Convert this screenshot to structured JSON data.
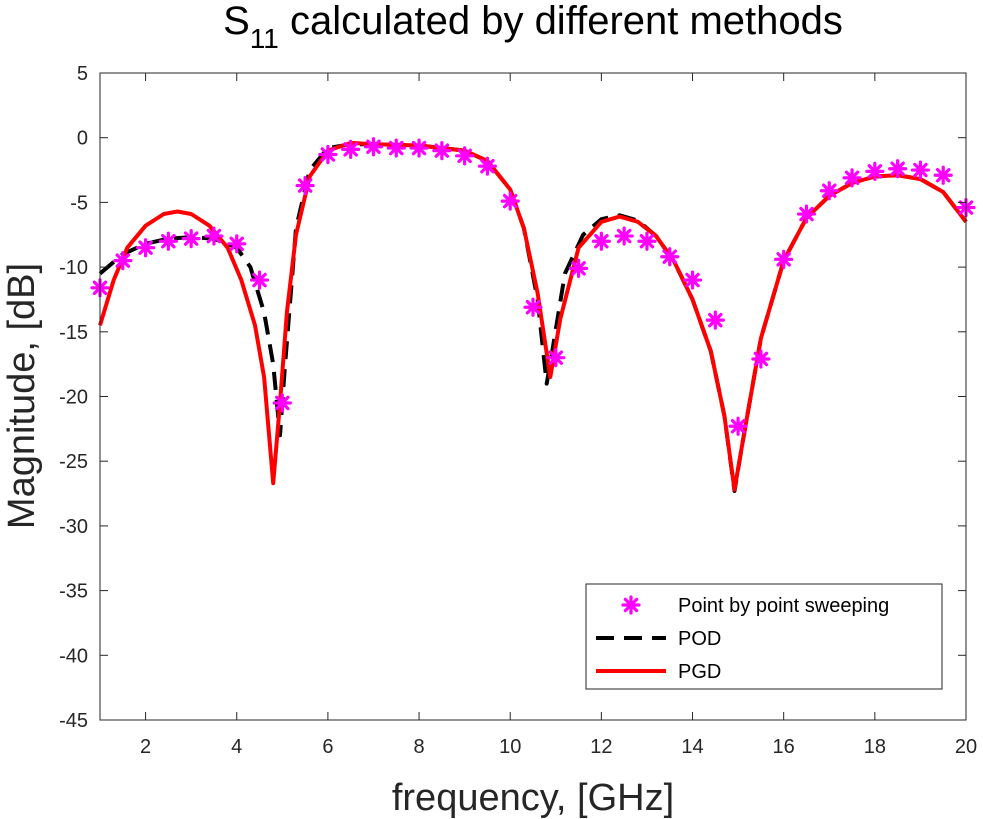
{
  "chart_data": {
    "type": "line",
    "title": "S",
    "title_subscript": "11",
    "title_rest": " calculated by different methods",
    "xlabel": "frequency, [GHz]",
    "ylabel": "Magnitude, [dB]",
    "xlim": [
      1,
      20
    ],
    "ylim": [
      -45,
      5
    ],
    "x_ticks": [
      2,
      4,
      6,
      8,
      10,
      12,
      14,
      16,
      18,
      20
    ],
    "y_ticks": [
      5,
      0,
      -5,
      -10,
      -15,
      -20,
      -25,
      -30,
      -35,
      -40,
      -45
    ],
    "grid": false,
    "legend_position": "bottom-right",
    "series": [
      {
        "name": "Point by point sweeping",
        "style": "markers",
        "marker": "asterisk",
        "color": "#ff00ff",
        "points": [
          [
            1.0,
            -11.6
          ],
          [
            1.5,
            -9.5
          ],
          [
            2.0,
            -8.5
          ],
          [
            2.5,
            -8.0
          ],
          [
            3.0,
            -7.8
          ],
          [
            3.5,
            -7.6
          ],
          [
            4.0,
            -8.2
          ],
          [
            4.5,
            -11.0
          ],
          [
            5.0,
            -20.5
          ],
          [
            5.5,
            -3.7
          ],
          [
            6.0,
            -1.3
          ],
          [
            6.5,
            -0.9
          ],
          [
            7.0,
            -0.7
          ],
          [
            7.5,
            -0.8
          ],
          [
            8.0,
            -0.8
          ],
          [
            8.5,
            -1.0
          ],
          [
            9.0,
            -1.4
          ],
          [
            9.5,
            -2.2
          ],
          [
            10.0,
            -4.9
          ],
          [
            10.5,
            -13.1
          ],
          [
            11.0,
            -17.0
          ],
          [
            11.5,
            -10.1
          ],
          [
            12.0,
            -8.0
          ],
          [
            12.5,
            -7.6
          ],
          [
            13.0,
            -8.0
          ],
          [
            13.5,
            -9.2
          ],
          [
            14.0,
            -11.0
          ],
          [
            14.5,
            -14.1
          ],
          [
            15.0,
            -22.3
          ],
          [
            15.5,
            -17.1
          ],
          [
            16.0,
            -9.4
          ],
          [
            16.5,
            -5.9
          ],
          [
            17.0,
            -4.1
          ],
          [
            17.5,
            -3.1
          ],
          [
            18.0,
            -2.6
          ],
          [
            18.5,
            -2.4
          ],
          [
            19.0,
            -2.5
          ],
          [
            19.5,
            -2.9
          ],
          [
            20.0,
            -5.4
          ]
        ]
      },
      {
        "name": "POD",
        "style": "dashed",
        "color": "#000000",
        "points": [
          [
            1.0,
            -10.5
          ],
          [
            1.5,
            -9.0
          ],
          [
            2.0,
            -8.2
          ],
          [
            2.5,
            -7.8
          ],
          [
            3.0,
            -7.7
          ],
          [
            3.5,
            -7.8
          ],
          [
            4.0,
            -8.5
          ],
          [
            4.3,
            -10.0
          ],
          [
            4.6,
            -13.5
          ],
          [
            4.8,
            -17.5
          ],
          [
            4.95,
            -23.0
          ],
          [
            5.05,
            -18.0
          ],
          [
            5.3,
            -7.0
          ],
          [
            5.6,
            -2.5
          ],
          [
            6.0,
            -0.8
          ],
          [
            6.5,
            -0.5
          ],
          [
            7.0,
            -0.5
          ],
          [
            8.0,
            -0.6
          ],
          [
            9.0,
            -1.0
          ],
          [
            9.5,
            -1.8
          ],
          [
            10.0,
            -4.0
          ],
          [
            10.3,
            -7.0
          ],
          [
            10.6,
            -12.5
          ],
          [
            10.8,
            -19.0
          ],
          [
            10.9,
            -17.0
          ],
          [
            11.2,
            -10.5
          ],
          [
            11.6,
            -7.5
          ],
          [
            12.0,
            -6.3
          ],
          [
            12.4,
            -6.0
          ],
          [
            12.8,
            -6.4
          ],
          [
            13.2,
            -7.6
          ],
          [
            13.6,
            -9.6
          ],
          [
            14.0,
            -12.5
          ],
          [
            14.4,
            -16.5
          ],
          [
            14.7,
            -21.5
          ],
          [
            14.92,
            -27.3
          ],
          [
            15.1,
            -23.5
          ],
          [
            15.5,
            -15.5
          ],
          [
            16.0,
            -9.5
          ],
          [
            16.5,
            -6.2
          ],
          [
            17.0,
            -4.5
          ],
          [
            17.5,
            -3.5
          ],
          [
            18.0,
            -3.0
          ],
          [
            18.5,
            -2.9
          ],
          [
            19.0,
            -3.2
          ],
          [
            19.5,
            -4.2
          ],
          [
            20.0,
            -6.5
          ]
        ]
      },
      {
        "name": "PGD",
        "style": "solid",
        "color": "#ff0000",
        "points": [
          [
            1.0,
            -14.5
          ],
          [
            1.3,
            -11.0
          ],
          [
            1.6,
            -8.5
          ],
          [
            2.0,
            -6.8
          ],
          [
            2.4,
            -5.9
          ],
          [
            2.7,
            -5.7
          ],
          [
            3.0,
            -5.9
          ],
          [
            3.4,
            -6.8
          ],
          [
            3.8,
            -8.5
          ],
          [
            4.1,
            -11.0
          ],
          [
            4.4,
            -14.5
          ],
          [
            4.6,
            -18.5
          ],
          [
            4.8,
            -26.7
          ],
          [
            4.95,
            -20.5
          ],
          [
            5.1,
            -13.5
          ],
          [
            5.3,
            -7.5
          ],
          [
            5.6,
            -3.0
          ],
          [
            6.0,
            -1.0
          ],
          [
            6.5,
            -0.4
          ],
          [
            7.0,
            -0.5
          ],
          [
            8.0,
            -0.6
          ],
          [
            9.0,
            -1.0
          ],
          [
            9.5,
            -1.8
          ],
          [
            10.0,
            -4.0
          ],
          [
            10.3,
            -7.0
          ],
          [
            10.6,
            -12.0
          ],
          [
            10.88,
            -18.5
          ],
          [
            11.1,
            -14.0
          ],
          [
            11.5,
            -8.5
          ],
          [
            12.0,
            -6.5
          ],
          [
            12.4,
            -6.1
          ],
          [
            12.8,
            -6.5
          ],
          [
            13.2,
            -7.6
          ],
          [
            13.6,
            -9.6
          ],
          [
            14.0,
            -12.5
          ],
          [
            14.4,
            -16.5
          ],
          [
            14.7,
            -21.5
          ],
          [
            14.92,
            -27.2
          ],
          [
            15.1,
            -23.5
          ],
          [
            15.5,
            -15.5
          ],
          [
            16.0,
            -9.5
          ],
          [
            16.5,
            -6.2
          ],
          [
            17.0,
            -4.5
          ],
          [
            17.5,
            -3.5
          ],
          [
            18.0,
            -3.0
          ],
          [
            18.5,
            -2.9
          ],
          [
            19.0,
            -3.2
          ],
          [
            19.5,
            -4.2
          ],
          [
            20.0,
            -6.5
          ]
        ]
      }
    ]
  }
}
